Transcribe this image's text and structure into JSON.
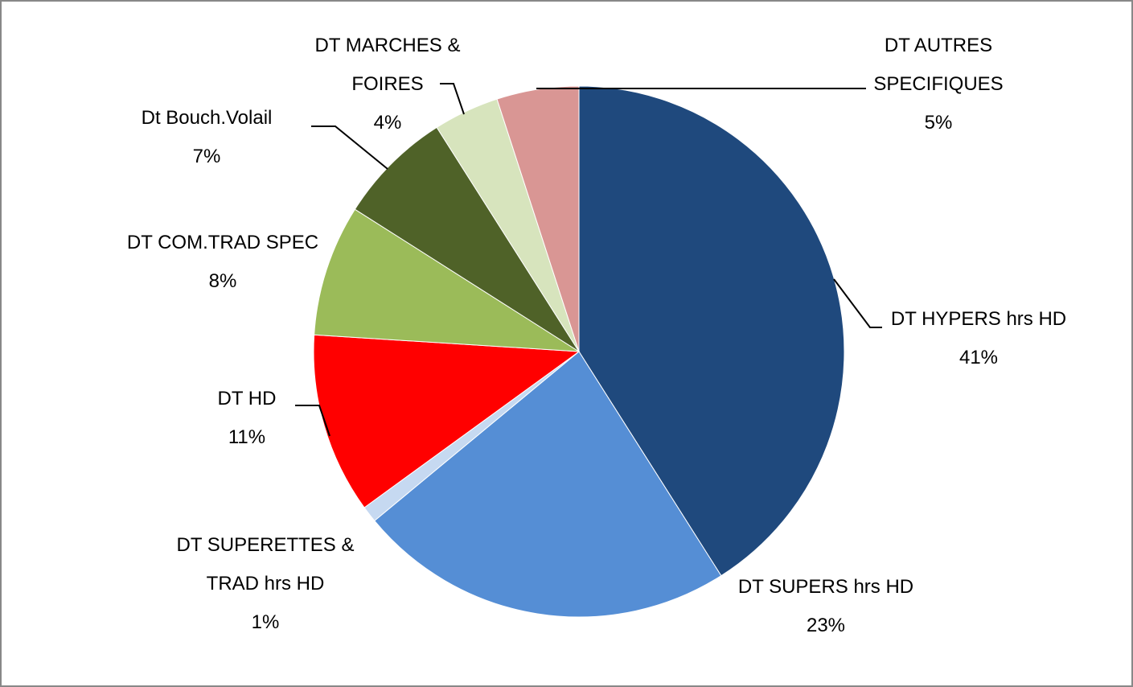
{
  "chart_data": {
    "type": "pie",
    "categories": [
      "DT HYPERS hrs HD",
      "DT SUPERS hrs HD",
      "DT SUPERETTES & TRAD hrs HD",
      "DT HD",
      "DT COM.TRAD SPEC",
      "Dt Bouch.Volail",
      "DT MARCHES & FOIRES",
      "DT AUTRES SPECIFIQUES"
    ],
    "values": [
      41,
      23,
      1,
      11,
      8,
      7,
      4,
      5
    ],
    "value_labels": [
      "41%",
      "23%",
      "1%",
      "11%",
      "8%",
      "7%",
      "4%",
      "5%"
    ],
    "colors": [
      "#1F497D",
      "#558ED5",
      "#C6D9F1",
      "#FF0000",
      "#9BBB59",
      "#4F6228",
      "#D7E4BD",
      "#D99694"
    ]
  }
}
